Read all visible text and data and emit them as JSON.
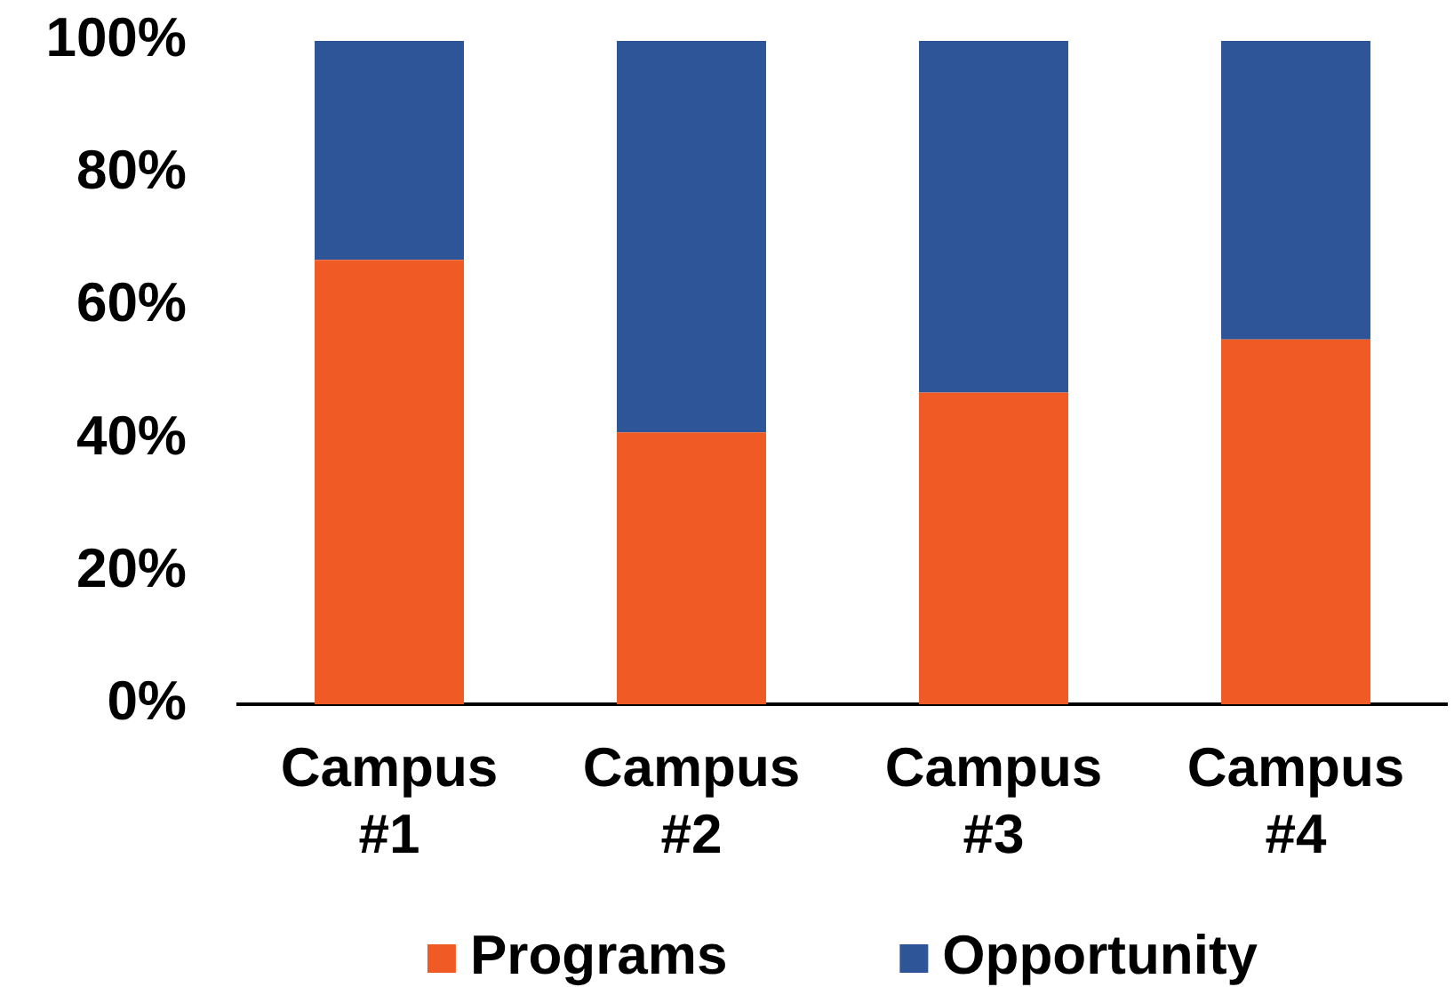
{
  "chart_data": {
    "type": "bar",
    "stacked": true,
    "categories": [
      "Campus #1",
      "Campus #2",
      "Campus #3",
      "Campus #4"
    ],
    "series": [
      {
        "name": "Programs",
        "color": "#f05a24",
        "values": [
          67,
          41,
          47,
          55
        ]
      },
      {
        "name": "Opportunity",
        "color": "#2e5597",
        "values": [
          33,
          59,
          53,
          45
        ]
      }
    ],
    "ylim": [
      0,
      100
    ],
    "yticks": [
      {
        "value": 0,
        "label": "0%"
      },
      {
        "value": 20,
        "label": "20%"
      },
      {
        "value": 40,
        "label": "40%"
      },
      {
        "value": 60,
        "label": "60%"
      },
      {
        "value": 80,
        "label": "80%"
      },
      {
        "value": 100,
        "label": "100%"
      }
    ],
    "legend": "bottom"
  }
}
